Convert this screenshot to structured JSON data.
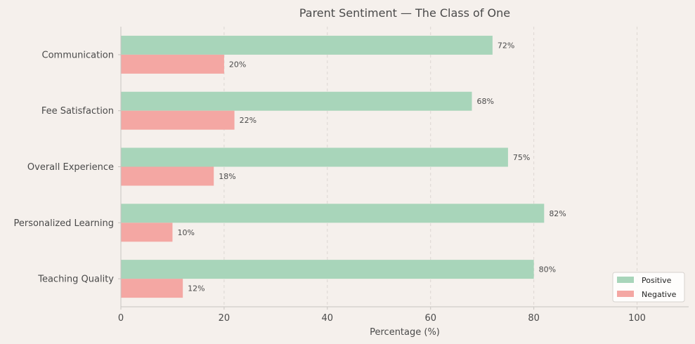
{
  "chart_data": {
    "type": "bar",
    "orientation": "horizontal",
    "title": "Parent Sentiment — The Class of One",
    "xlabel": "Percentage (%)",
    "ylabel": "",
    "categories": [
      "Communication",
      "Fee Satisfaction",
      "Overall Experience",
      "Personalized Learning",
      "Teaching Quality"
    ],
    "series": [
      {
        "name": "Positive",
        "values": [
          72,
          68,
          75,
          82,
          80
        ],
        "color": "#a8d5ba"
      },
      {
        "name": "Negative",
        "values": [
          20,
          22,
          18,
          10,
          12
        ],
        "color": "#f4a7a3"
      }
    ],
    "xlim": [
      0,
      110
    ],
    "xticks": [
      0,
      20,
      40,
      60,
      80,
      100
    ],
    "value_label_suffix": "%",
    "grid": "x-dashed",
    "legend_position": "bottom-right"
  }
}
